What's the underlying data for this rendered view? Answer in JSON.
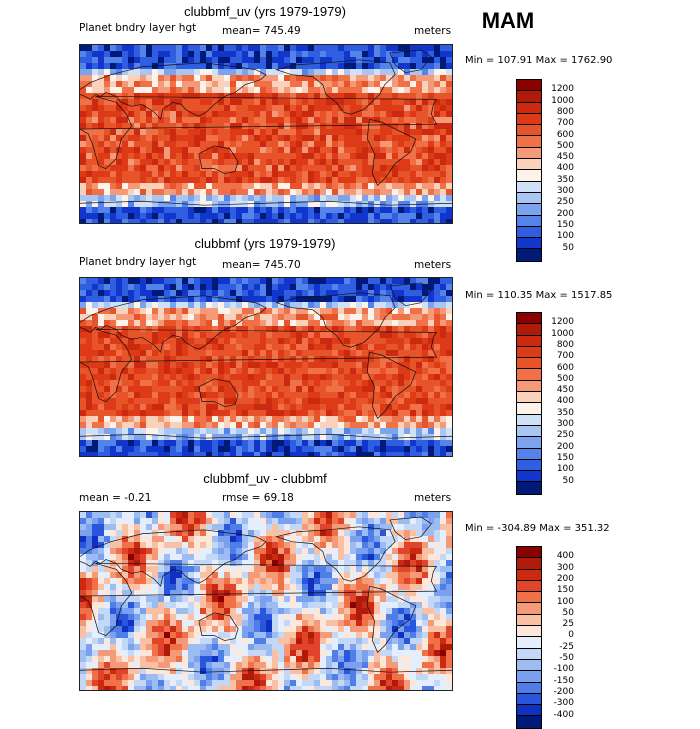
{
  "season": "MAM",
  "panels": [
    {
      "title": "clubbmf_uv (yrs 1979-1979)",
      "left_label": "Planet bndry layer hgt",
      "mid_label": "mean= 745.49",
      "units": "meters",
      "minmax": "Min = 107.91 Max = 1762.90",
      "levels": [
        "1200",
        "1000",
        "800",
        "700",
        "600",
        "500",
        "450",
        "400",
        "350",
        "300",
        "250",
        "200",
        "150",
        "100",
        "50"
      ],
      "colors": [
        "#8b0000",
        "#b01a0a",
        "#cc2a10",
        "#dd3a18",
        "#e8542a",
        "#f07048",
        "#f59a78",
        "#fad2bc",
        "#fdf3ea",
        "#cfe0f7",
        "#a9c6f3",
        "#7ca4ee",
        "#5483ea",
        "#2f5fe0",
        "#1236cc",
        "#001a7a"
      ],
      "field": "pos"
    },
    {
      "title": "clubbmf (yrs 1979-1979)",
      "left_label": "Planet bndry layer hgt",
      "mid_label": "mean= 745.70",
      "units": "meters",
      "minmax": "Min = 110.35 Max = 1517.85",
      "levels": [
        "1200",
        "1000",
        "800",
        "700",
        "600",
        "500",
        "450",
        "400",
        "350",
        "300",
        "250",
        "200",
        "150",
        "100",
        "50"
      ],
      "colors": [
        "#8b0000",
        "#b01a0a",
        "#cc2a10",
        "#dd3a18",
        "#e8542a",
        "#f07048",
        "#f59a78",
        "#fad2bc",
        "#fdf3ea",
        "#cfe0f7",
        "#a9c6f3",
        "#7ca4ee",
        "#5483ea",
        "#2f5fe0",
        "#1236cc",
        "#001a7a"
      ],
      "field": "pos"
    },
    {
      "title": "clubbmf_uv - clubbmf",
      "left_label": "mean =   -0.21",
      "mid_label": "rmse =   69.18",
      "units": "meters",
      "minmax": "Min = -304.89 Max = 351.32",
      "levels": [
        "400",
        "300",
        "200",
        "150",
        "100",
        "50",
        "25",
        "0",
        "-25",
        "-50",
        "-100",
        "-150",
        "-200",
        "-300",
        "-400"
      ],
      "colors": [
        "#8b0000",
        "#b01a0a",
        "#cc2a10",
        "#e0442a",
        "#f07048",
        "#f59a78",
        "#fac0a4",
        "#fde6da",
        "#e4eefc",
        "#c3d7f6",
        "#9dbcf2",
        "#7aa0ee",
        "#4f7ee8",
        "#2a56dc",
        "#0f30c0",
        "#001a7a"
      ],
      "field": "diff"
    }
  ]
}
